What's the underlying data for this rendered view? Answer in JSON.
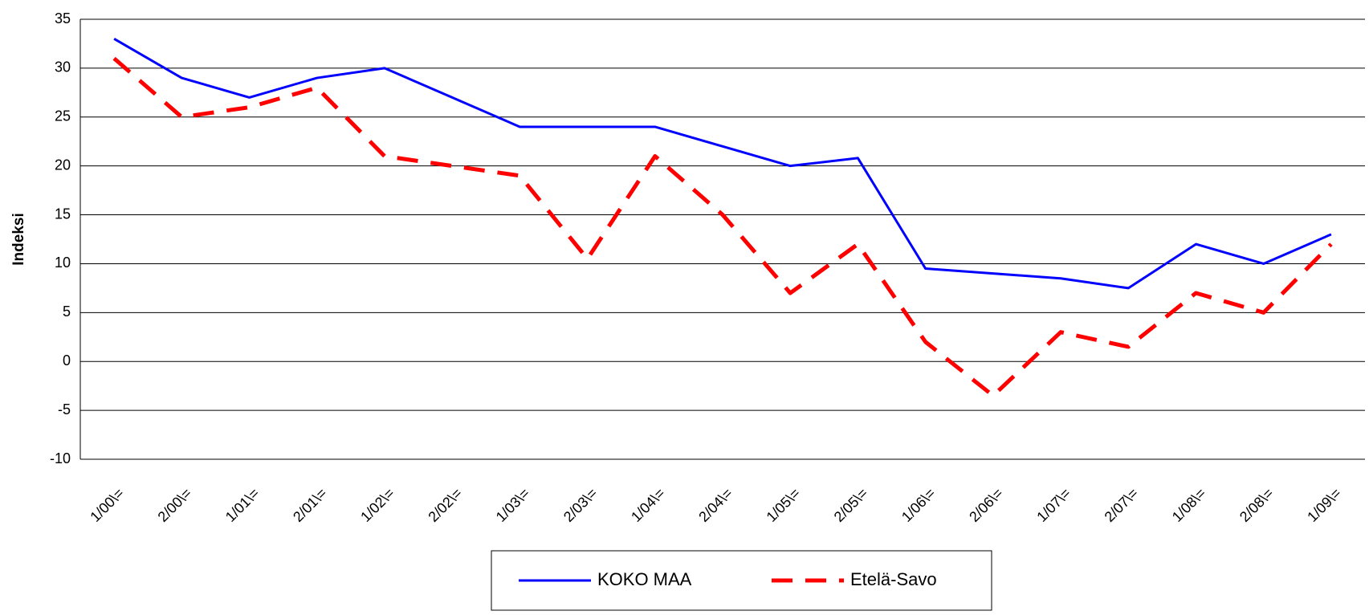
{
  "chart_data": {
    "type": "line",
    "ylabel": "Indeksi",
    "categories": [
      "1/00\\=",
      "2/00\\=",
      "1/01\\=",
      "2/01\\=",
      "1/02\\=",
      "2/02\\=",
      "1/03\\=",
      "2/03\\=",
      "1/04\\=",
      "2/04\\=",
      "1/05\\=",
      "2/05\\=",
      "1/06\\=",
      "2/06\\=",
      "1/07\\=",
      "2/07\\=",
      "1/08\\=",
      "2/08\\=",
      "1/09\\="
    ],
    "series": [
      {
        "name": "KOKO MAA",
        "color": "#0000ff",
        "dash": false,
        "values": [
          33,
          29,
          27,
          29,
          30,
          27,
          24,
          24,
          24,
          22,
          20,
          20.8,
          9.5,
          9,
          8.5,
          7.5,
          12,
          10,
          13
        ]
      },
      {
        "name": "Etelä-Savo",
        "color": "#ff0000",
        "dash": true,
        "values": [
          31,
          25,
          26,
          28,
          21,
          20,
          19,
          10.5,
          21,
          15,
          7,
          12,
          2,
          -3.5,
          3,
          1.5,
          7,
          5,
          12
        ]
      }
    ],
    "ylim": [
      -10,
      35
    ],
    "yticks": [
      -10,
      -5,
      0,
      5,
      10,
      15,
      20,
      25,
      30,
      35
    ],
    "grid": true,
    "legend": "bottom"
  }
}
